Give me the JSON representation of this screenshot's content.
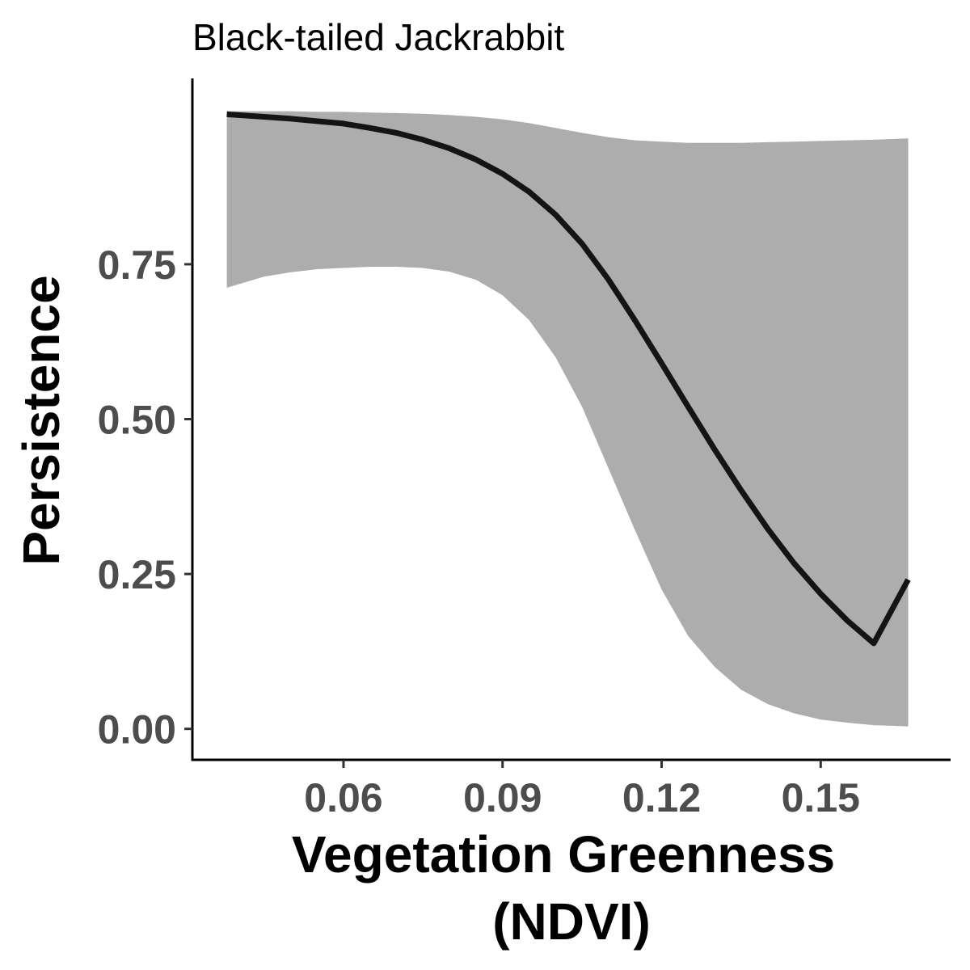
{
  "chart_data": {
    "type": "line",
    "title": "Black-tailed Jackrabbit",
    "xlabel_lines": [
      "Vegetation Greenness",
      "(NDVI)"
    ],
    "ylabel": "Persistence",
    "xlim": [
      0.0315,
      0.1745
    ],
    "ylim": [
      -0.05,
      1.05
    ],
    "x_ticks": [
      {
        "value": 0.06,
        "label": "0.06"
      },
      {
        "value": 0.09,
        "label": "0.09"
      },
      {
        "value": 0.12,
        "label": "0.12"
      },
      {
        "value": 0.15,
        "label": "0.15"
      }
    ],
    "y_ticks": [
      {
        "value": 0.0,
        "label": "0.00"
      },
      {
        "value": 0.25,
        "label": "0.25"
      },
      {
        "value": 0.5,
        "label": "0.50"
      },
      {
        "value": 0.75,
        "label": "0.75"
      }
    ],
    "grid": false,
    "legend": "none",
    "series": [
      {
        "kind": "fit",
        "color": "#141414",
        "x": [
          0.038,
          0.045,
          0.05,
          0.055,
          0.06,
          0.065,
          0.07,
          0.075,
          0.08,
          0.085,
          0.09,
          0.095,
          0.1,
          0.105,
          0.11,
          0.115,
          0.12,
          0.125,
          0.13,
          0.135,
          0.14,
          0.145,
          0.15,
          0.155,
          0.16,
          0.1665
        ],
        "y": [
          0.992,
          0.988,
          0.985,
          0.981,
          0.977,
          0.97,
          0.962,
          0.951,
          0.937,
          0.919,
          0.896,
          0.867,
          0.83,
          0.783,
          0.725,
          0.659,
          0.59,
          0.52,
          0.451,
          0.385,
          0.323,
          0.267,
          0.218,
          0.175,
          0.138,
          0.241
        ]
      },
      {
        "kind": "confidence-band",
        "color": "#adadad",
        "x": [
          0.038,
          0.045,
          0.05,
          0.055,
          0.06,
          0.065,
          0.07,
          0.075,
          0.08,
          0.085,
          0.09,
          0.095,
          0.1,
          0.105,
          0.11,
          0.115,
          0.12,
          0.125,
          0.13,
          0.135,
          0.14,
          0.145,
          0.15,
          0.155,
          0.16,
          0.1665
        ],
        "lower": [
          0.712,
          0.73,
          0.737,
          0.742,
          0.744,
          0.746,
          0.746,
          0.744,
          0.738,
          0.725,
          0.7,
          0.66,
          0.6,
          0.52,
          0.42,
          0.32,
          0.225,
          0.15,
          0.1,
          0.063,
          0.04,
          0.025,
          0.015,
          0.01,
          0.006,
          0.004
        ],
        "upper": [
          0.997,
          0.997,
          0.997,
          0.996,
          0.996,
          0.995,
          0.994,
          0.993,
          0.991,
          0.988,
          0.984,
          0.978,
          0.97,
          0.962,
          0.955,
          0.95,
          0.948,
          0.946,
          0.946,
          0.946,
          0.947,
          0.948,
          0.949,
          0.95,
          0.951,
          0.953
        ]
      }
    ]
  }
}
